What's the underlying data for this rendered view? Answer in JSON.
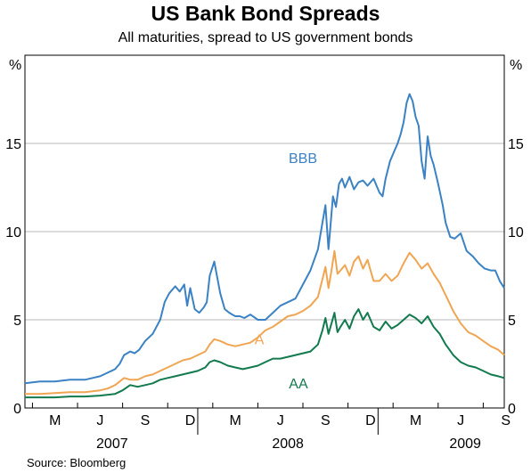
{
  "title": "US Bank Bond Spreads",
  "subtitle": "All maturities, spread to US government bonds",
  "source": "Source: Bloomberg",
  "unit_left": "%",
  "unit_right": "%",
  "chart_data": {
    "type": "line",
    "title": "US Bank Bond Spreads",
    "subtitle": "All maturities, spread to US government bonds",
    "ylabel": "%",
    "ylim": [
      0,
      20
    ],
    "yticks": [
      0,
      5,
      10,
      15
    ],
    "grid": true,
    "x_month_ticks": [
      "M",
      "J",
      "S",
      "D",
      "M",
      "J",
      "S",
      "D",
      "M",
      "J",
      "S"
    ],
    "x_year_labels": [
      "2007",
      "2008",
      "2009"
    ],
    "x_unit": "months since January 2007",
    "xlim": [
      1.0,
      32.9
    ],
    "series": [
      {
        "name": "BBB",
        "color": "#3b82c4",
        "x": [
          1.0,
          2.0,
          3.0,
          4.0,
          5.0,
          5.5,
          6.0,
          6.5,
          7.0,
          7.3,
          7.6,
          8.0,
          8.3,
          8.6,
          9.0,
          9.5,
          10.0,
          10.3,
          10.6,
          11.0,
          11.3,
          11.6,
          11.8,
          12.0,
          12.3,
          12.6,
          12.9,
          13.1,
          13.3,
          13.6,
          14.0,
          14.3,
          14.6,
          14.8,
          15.0,
          15.3,
          15.6,
          16.0,
          16.5,
          17.0,
          17.5,
          18.0,
          18.5,
          19.0,
          19.5,
          20.0,
          20.5,
          20.8,
          21.0,
          21.2,
          21.3,
          21.5,
          21.7,
          21.9,
          22.1,
          22.3,
          22.6,
          22.9,
          23.2,
          23.5,
          23.8,
          24.2,
          24.6,
          24.8,
          25.0,
          25.3,
          25.6,
          25.8,
          26.0,
          26.2,
          26.4,
          26.6,
          26.8,
          27.0,
          27.2,
          27.4,
          27.6,
          27.8,
          28.0,
          28.2,
          28.5,
          28.8,
          29.0,
          29.3,
          29.6,
          30.0,
          30.4,
          30.8,
          31.2,
          31.6,
          32.0,
          32.3,
          32.6,
          32.9
        ],
        "values": [
          1.4,
          1.5,
          1.5,
          1.6,
          1.6,
          1.7,
          1.8,
          2.0,
          2.2,
          2.5,
          3.0,
          3.2,
          3.1,
          3.3,
          3.8,
          4.2,
          5.0,
          6.0,
          6.5,
          6.9,
          6.6,
          7.0,
          5.8,
          6.8,
          5.6,
          5.4,
          5.7,
          6.0,
          7.5,
          8.3,
          6.5,
          5.6,
          5.4,
          5.3,
          5.2,
          5.2,
          5.1,
          5.3,
          5.0,
          5.0,
          5.4,
          5.8,
          6.0,
          6.2,
          7.0,
          7.8,
          9.0,
          10.5,
          11.5,
          9.0,
          10.0,
          12.0,
          11.4,
          12.7,
          13.0,
          12.5,
          13.1,
          12.4,
          12.8,
          12.9,
          12.6,
          13.0,
          12.2,
          12.0,
          13.0,
          14.0,
          14.6,
          15.0,
          15.5,
          16.2,
          17.3,
          17.8,
          17.4,
          16.5,
          16.0,
          14.0,
          13.0,
          15.4,
          14.3,
          13.8,
          12.7,
          11.5,
          10.5,
          9.7,
          9.6,
          9.9,
          8.9,
          8.6,
          8.2,
          7.9,
          7.8,
          7.8,
          7.2,
          6.8
        ]
      },
      {
        "name": "A",
        "color": "#f0a553",
        "x": [
          1.0,
          2.0,
          3.0,
          4.0,
          5.0,
          6.0,
          6.5,
          7.0,
          7.3,
          7.6,
          8.0,
          8.5,
          9.0,
          9.5,
          10.0,
          10.5,
          11.0,
          11.5,
          12.0,
          12.5,
          13.0,
          13.3,
          13.6,
          14.0,
          14.5,
          15.0,
          15.5,
          16.0,
          16.5,
          17.0,
          17.5,
          18.0,
          18.5,
          19.0,
          19.5,
          20.0,
          20.5,
          20.8,
          21.0,
          21.2,
          21.4,
          21.6,
          21.8,
          22.0,
          22.3,
          22.6,
          22.9,
          23.2,
          23.5,
          23.8,
          24.2,
          24.6,
          25.0,
          25.4,
          25.8,
          26.2,
          26.6,
          27.0,
          27.4,
          27.8,
          28.2,
          28.6,
          29.0,
          29.5,
          30.0,
          30.5,
          31.0,
          31.5,
          32.0,
          32.5,
          32.9
        ],
        "values": [
          0.8,
          0.8,
          0.85,
          0.9,
          0.9,
          1.0,
          1.1,
          1.3,
          1.5,
          1.7,
          1.6,
          1.6,
          1.8,
          1.9,
          2.1,
          2.3,
          2.5,
          2.7,
          2.8,
          3.0,
          3.2,
          3.6,
          3.9,
          3.8,
          3.6,
          3.5,
          3.6,
          3.7,
          4.0,
          4.4,
          4.6,
          4.9,
          5.2,
          5.3,
          5.5,
          5.8,
          6.3,
          7.3,
          8.0,
          6.8,
          7.8,
          8.9,
          7.6,
          7.8,
          8.1,
          7.5,
          8.3,
          8.6,
          7.9,
          8.4,
          7.2,
          7.2,
          7.6,
          7.2,
          7.5,
          8.2,
          8.8,
          8.4,
          7.9,
          8.2,
          7.6,
          7.1,
          6.4,
          5.5,
          4.8,
          4.3,
          4.1,
          3.8,
          3.5,
          3.3,
          3.0
        ]
      },
      {
        "name": "AA",
        "color": "#127a4e",
        "x": [
          1.0,
          2.0,
          3.0,
          4.0,
          5.0,
          6.0,
          7.0,
          7.5,
          8.0,
          8.5,
          9.0,
          9.5,
          10.0,
          10.5,
          11.0,
          11.5,
          12.0,
          12.5,
          13.0,
          13.3,
          13.6,
          14.0,
          14.5,
          15.0,
          15.5,
          16.0,
          16.5,
          17.0,
          17.5,
          18.0,
          18.5,
          19.0,
          19.5,
          20.0,
          20.5,
          20.8,
          21.0,
          21.2,
          21.4,
          21.6,
          21.8,
          22.0,
          22.3,
          22.6,
          22.9,
          23.2,
          23.5,
          23.8,
          24.2,
          24.6,
          25.0,
          25.4,
          25.8,
          26.2,
          26.6,
          27.0,
          27.4,
          27.8,
          28.2,
          28.6,
          29.0,
          29.5,
          30.0,
          30.5,
          31.0,
          31.5,
          32.0,
          32.5,
          32.9
        ],
        "values": [
          0.6,
          0.6,
          0.6,
          0.65,
          0.65,
          0.7,
          0.8,
          1.0,
          1.3,
          1.2,
          1.3,
          1.4,
          1.6,
          1.7,
          1.8,
          1.9,
          2.0,
          2.1,
          2.3,
          2.6,
          2.7,
          2.6,
          2.4,
          2.3,
          2.2,
          2.3,
          2.4,
          2.6,
          2.8,
          2.8,
          2.9,
          3.0,
          3.1,
          3.2,
          3.6,
          4.4,
          5.1,
          4.2,
          4.8,
          5.4,
          4.3,
          4.6,
          5.0,
          4.5,
          5.2,
          5.6,
          5.0,
          5.4,
          4.6,
          4.4,
          4.9,
          4.5,
          4.7,
          5.0,
          5.3,
          5.1,
          4.8,
          5.2,
          4.6,
          4.2,
          3.6,
          3.0,
          2.6,
          2.4,
          2.3,
          2.1,
          1.9,
          1.8,
          1.7
        ]
      }
    ]
  }
}
